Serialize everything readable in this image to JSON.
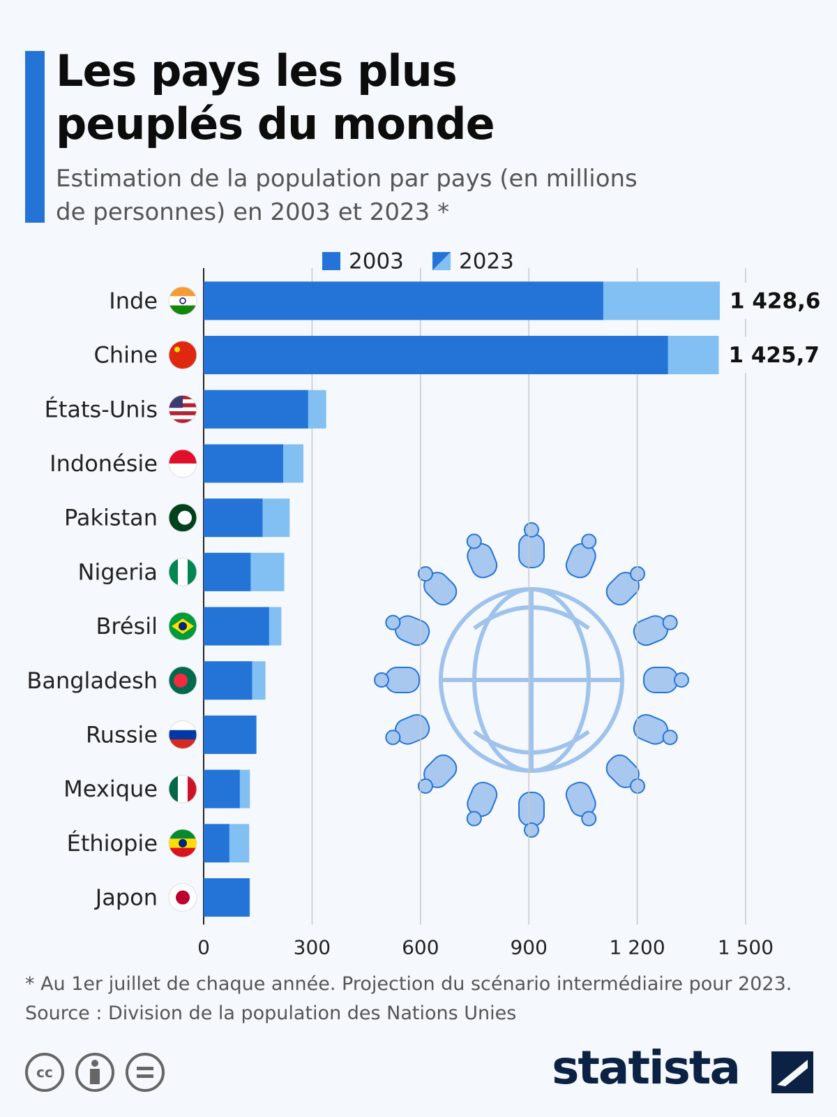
{
  "chart_data": {
    "type": "bar",
    "orientation": "horizontal",
    "title": "Les pays les plus peuplés du monde",
    "subtitle": "Estimation de la population par pays (en millions de personnes) en 2003 et 2023 *",
    "categories": [
      "Inde",
      "Chine",
      "États-Unis",
      "Indonésie",
      "Pakistan",
      "Nigeria",
      "Brésil",
      "Bangladesh",
      "Russie",
      "Mexique",
      "Éthiopie",
      "Japon"
    ],
    "series": [
      {
        "name": "2003",
        "color": "#2474d8",
        "values": [
          1106,
          1285,
          289,
          220,
          163,
          130,
          181,
          134,
          146,
          100,
          71,
          127
        ]
      },
      {
        "name": "2023",
        "color": "#82bff2",
        "values": [
          1428.6,
          1425.7,
          339,
          276,
          238,
          223,
          215,
          171,
          144,
          128,
          126,
          128
        ],
        "value_labels": [
          "1 428,6",
          "1 425,7",
          null,
          null,
          null,
          null,
          null,
          null,
          null,
          null,
          null,
          null
        ]
      }
    ],
    "xlim": [
      0,
      1500
    ],
    "xticks": [
      0,
      300,
      600,
      900,
      {
        "value": 1200,
        "label": "1 200"
      },
      {
        "value": 1500,
        "label": "1 500"
      }
    ],
    "grid": true,
    "note": "* Au 1er juillet de chaque année. Projection du scénario intermédiaire pour 2023.",
    "source": "Source : Division de la population des Nations Unies",
    "brand": "statista"
  }
}
